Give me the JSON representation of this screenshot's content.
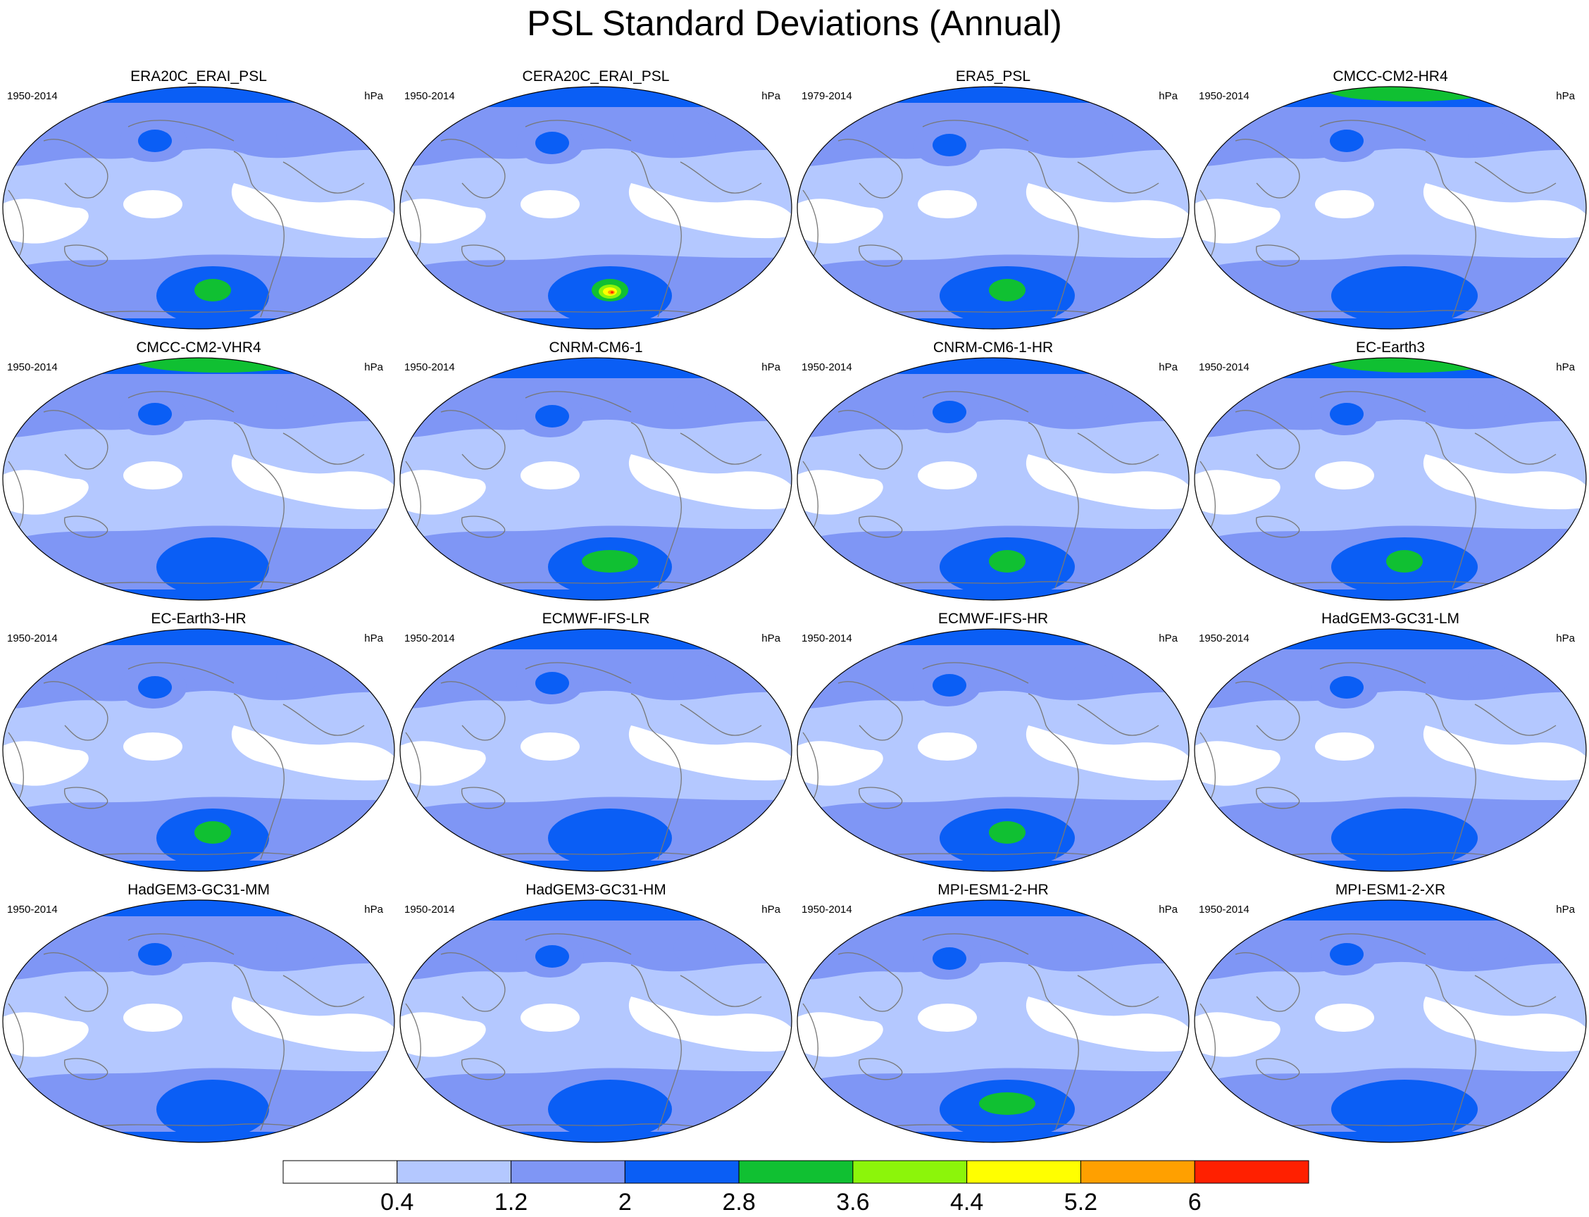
{
  "title": "PSL Standard Deviations (Annual)",
  "units": "hPa",
  "panels": [
    {
      "title": "ERA20C_ERAI_PSL",
      "period": "1950-2014"
    },
    {
      "title": "CERA20C_ERAI_PSL",
      "period": "1950-2014"
    },
    {
      "title": "ERA5_PSL",
      "period": "1979-2014"
    },
    {
      "title": "CMCC-CM2-HR4",
      "period": "1950-2014"
    },
    {
      "title": "CMCC-CM2-VHR4",
      "period": "1950-2014"
    },
    {
      "title": "CNRM-CM6-1",
      "period": "1950-2014"
    },
    {
      "title": "CNRM-CM6-1-HR",
      "period": "1950-2014"
    },
    {
      "title": "EC-Earth3",
      "period": "1950-2014"
    },
    {
      "title": "EC-Earth3-HR",
      "period": "1950-2014"
    },
    {
      "title": "ECMWF-IFS-LR",
      "period": "1950-2014"
    },
    {
      "title": "ECMWF-IFS-HR",
      "period": "1950-2014"
    },
    {
      "title": "HadGEM3-GC31-LM",
      "period": "1950-2014"
    },
    {
      "title": "HadGEM3-GC31-MM",
      "period": "1950-2014"
    },
    {
      "title": "HadGEM3-GC31-HM",
      "period": "1950-2014"
    },
    {
      "title": "MPI-ESM1-2-HR",
      "period": "1950-2014"
    },
    {
      "title": "MPI-ESM1-2-XR",
      "period": "1950-2014"
    }
  ],
  "colorbar": {
    "labels": [
      "0.4",
      "1.2",
      "2",
      "2.8",
      "3.6",
      "4.4",
      "5.2",
      "6"
    ],
    "colors": [
      "#ffffff",
      "#b4c8ff",
      "#7f96f5",
      "#0a5ef5",
      "#10c032",
      "#8cf50a",
      "#ffff00",
      "#ffa000",
      "#ff2000"
    ]
  },
  "palette": {
    "bg_low": "#ffffff",
    "level1": "#b4c8ff",
    "level2": "#7f96f5",
    "level3": "#0a5ef5",
    "level4": "#10c032",
    "level5": "#8cf50a",
    "level6": "#ffff00",
    "level7": "#ffa000",
    "level8": "#ff2000",
    "coast": "#777777"
  }
}
